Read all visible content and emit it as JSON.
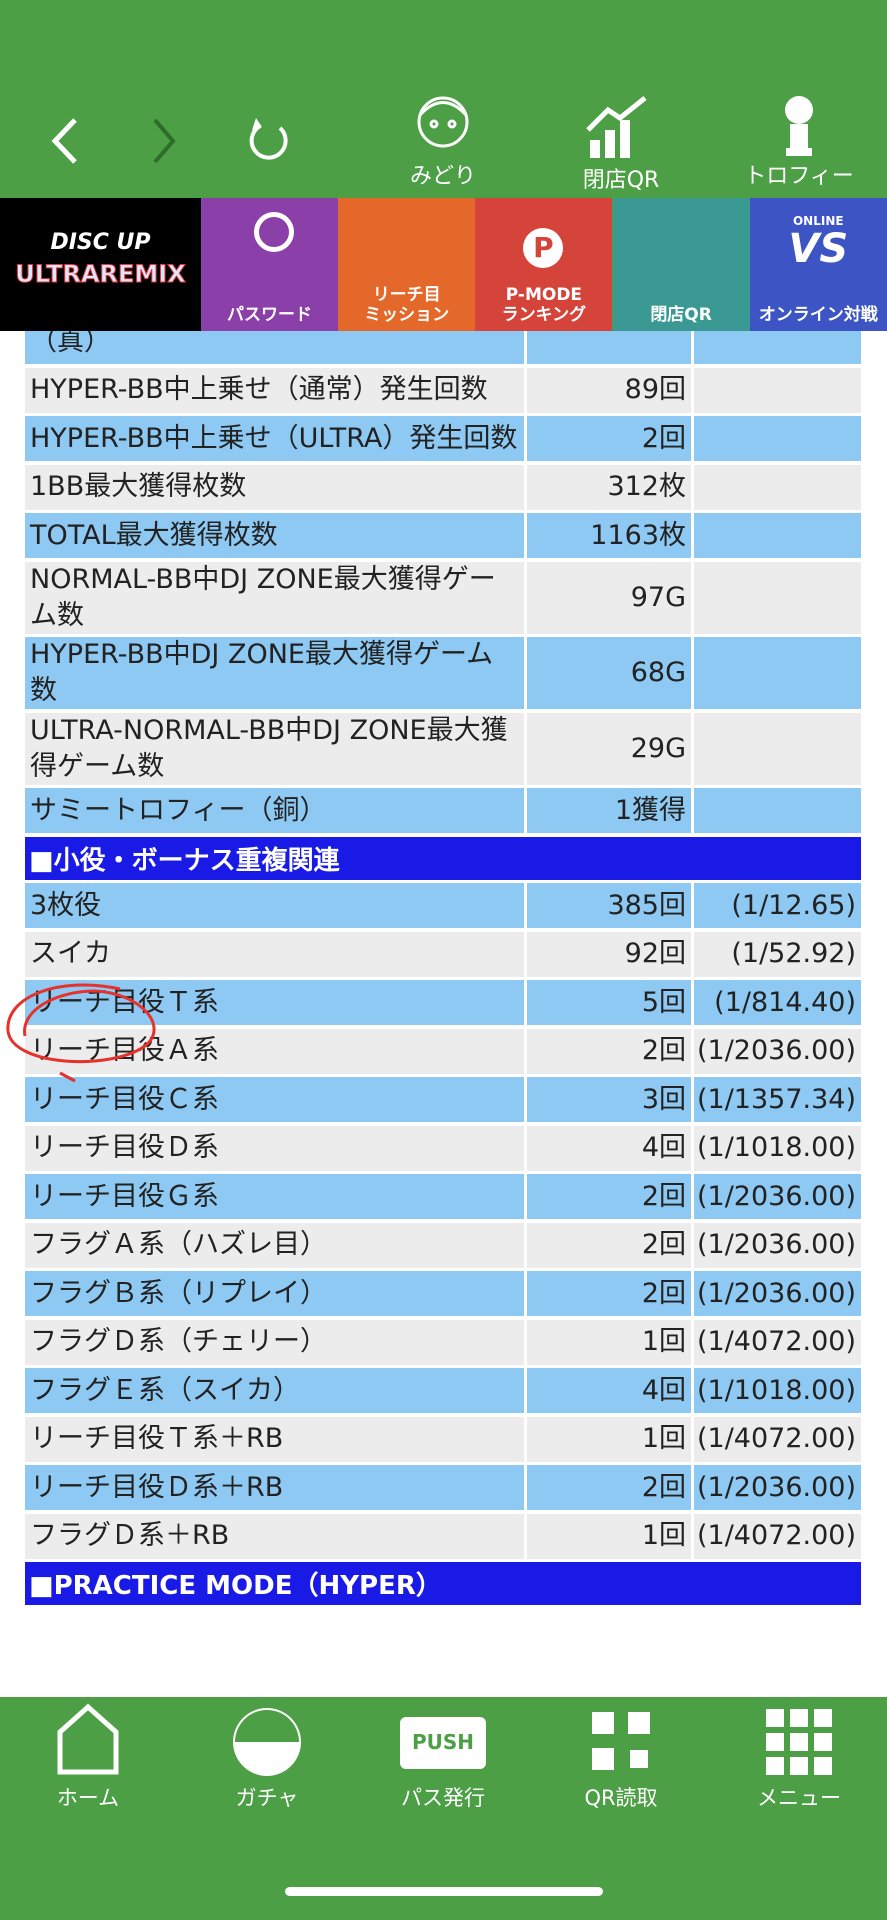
{
  "header": {
    "buttons": [
      "みどり",
      "閉店QR",
      "トロフィー"
    ]
  },
  "nav": {
    "logo": [
      "DISC UP",
      "ULTRAREMIX"
    ],
    "items": [
      [
        "パスワード"
      ],
      [
        "リーチ目",
        "ミッション"
      ],
      [
        "P-MODE",
        "ランキング"
      ],
      [
        "閉店QR"
      ],
      [
        "オンライン対戦"
      ]
    ],
    "crown_letter": "P",
    "badge_top": "ONLINE",
    "badge_main": "VS"
  },
  "table": {
    "rows": [
      {
        "label": "（真）"
      },
      {
        "label": "HYPER-BB中上乗せ（通常）発生回数",
        "value": "89回"
      },
      {
        "label": "HYPER-BB中上乗せ（ULTRA）発生回数",
        "value": "2回"
      },
      {
        "label": "1BB最大獲得枚数",
        "value": "312枚"
      },
      {
        "label": "TOTAL最大獲得枚数",
        "value": "1163枚"
      },
      {
        "label": "NORMAL-BB中DJ ZONE最大獲得ゲーム数",
        "value": "97G"
      },
      {
        "label": "HYPER-BB中DJ ZONE最大獲得ゲーム数",
        "value": "68G"
      },
      {
        "label": "ULTRA-NORMAL-BB中DJ ZONE最大獲得ゲーム数",
        "value": "29G"
      },
      {
        "label": "サミートロフィー（銅）",
        "value": "1獲得"
      },
      {
        "heading": "■小役・ボーナス重複関連"
      },
      {
        "label": "3枚役",
        "value": "385回",
        "ratio": "(1/12.65)"
      },
      {
        "label": "スイカ",
        "value": "92回",
        "ratio": "(1/52.92)"
      },
      {
        "label": "リーチ目役Ｔ系",
        "value": "5回",
        "ratio": "(1/814.40)"
      },
      {
        "label": "リーチ目役Ａ系",
        "value": "2回",
        "ratio": "(1/2036.00)"
      },
      {
        "label": "リーチ目役Ｃ系",
        "value": "3回",
        "ratio": "(1/1357.34)"
      },
      {
        "label": "リーチ目役Ｄ系",
        "value": "4回",
        "ratio": "(1/1018.00)"
      },
      {
        "label": "リーチ目役Ｇ系",
        "value": "2回",
        "ratio": "(1/2036.00)"
      },
      {
        "label": "フラグＡ系（ハズレ目）",
        "value": "2回",
        "ratio": "(1/2036.00)"
      },
      {
        "label": "フラグＢ系（リプレイ）",
        "value": "2回",
        "ratio": "(1/2036.00)"
      },
      {
        "label": "フラグＤ系（チェリー）",
        "value": "1回",
        "ratio": "(1/4072.00)"
      },
      {
        "label": "フラグＥ系（スイカ）",
        "value": "4回",
        "ratio": "(1/1018.00)"
      },
      {
        "label": "リーチ目役Ｔ系＋RB",
        "value": "1回",
        "ratio": "(1/4072.00)"
      },
      {
        "label": "リーチ目役Ｄ系＋RB",
        "value": "2回",
        "ratio": "(1/2036.00)"
      },
      {
        "label": "フラグＤ系＋RB",
        "value": "1回",
        "ratio": "(1/4072.00)"
      },
      {
        "heading": "■PRACTICE MODE（HYPER）"
      }
    ]
  },
  "tabbar": {
    "items": [
      "ホーム",
      "ガチャ",
      "パス発行",
      "QR読取",
      "メニュー"
    ],
    "push": "PUSH"
  }
}
